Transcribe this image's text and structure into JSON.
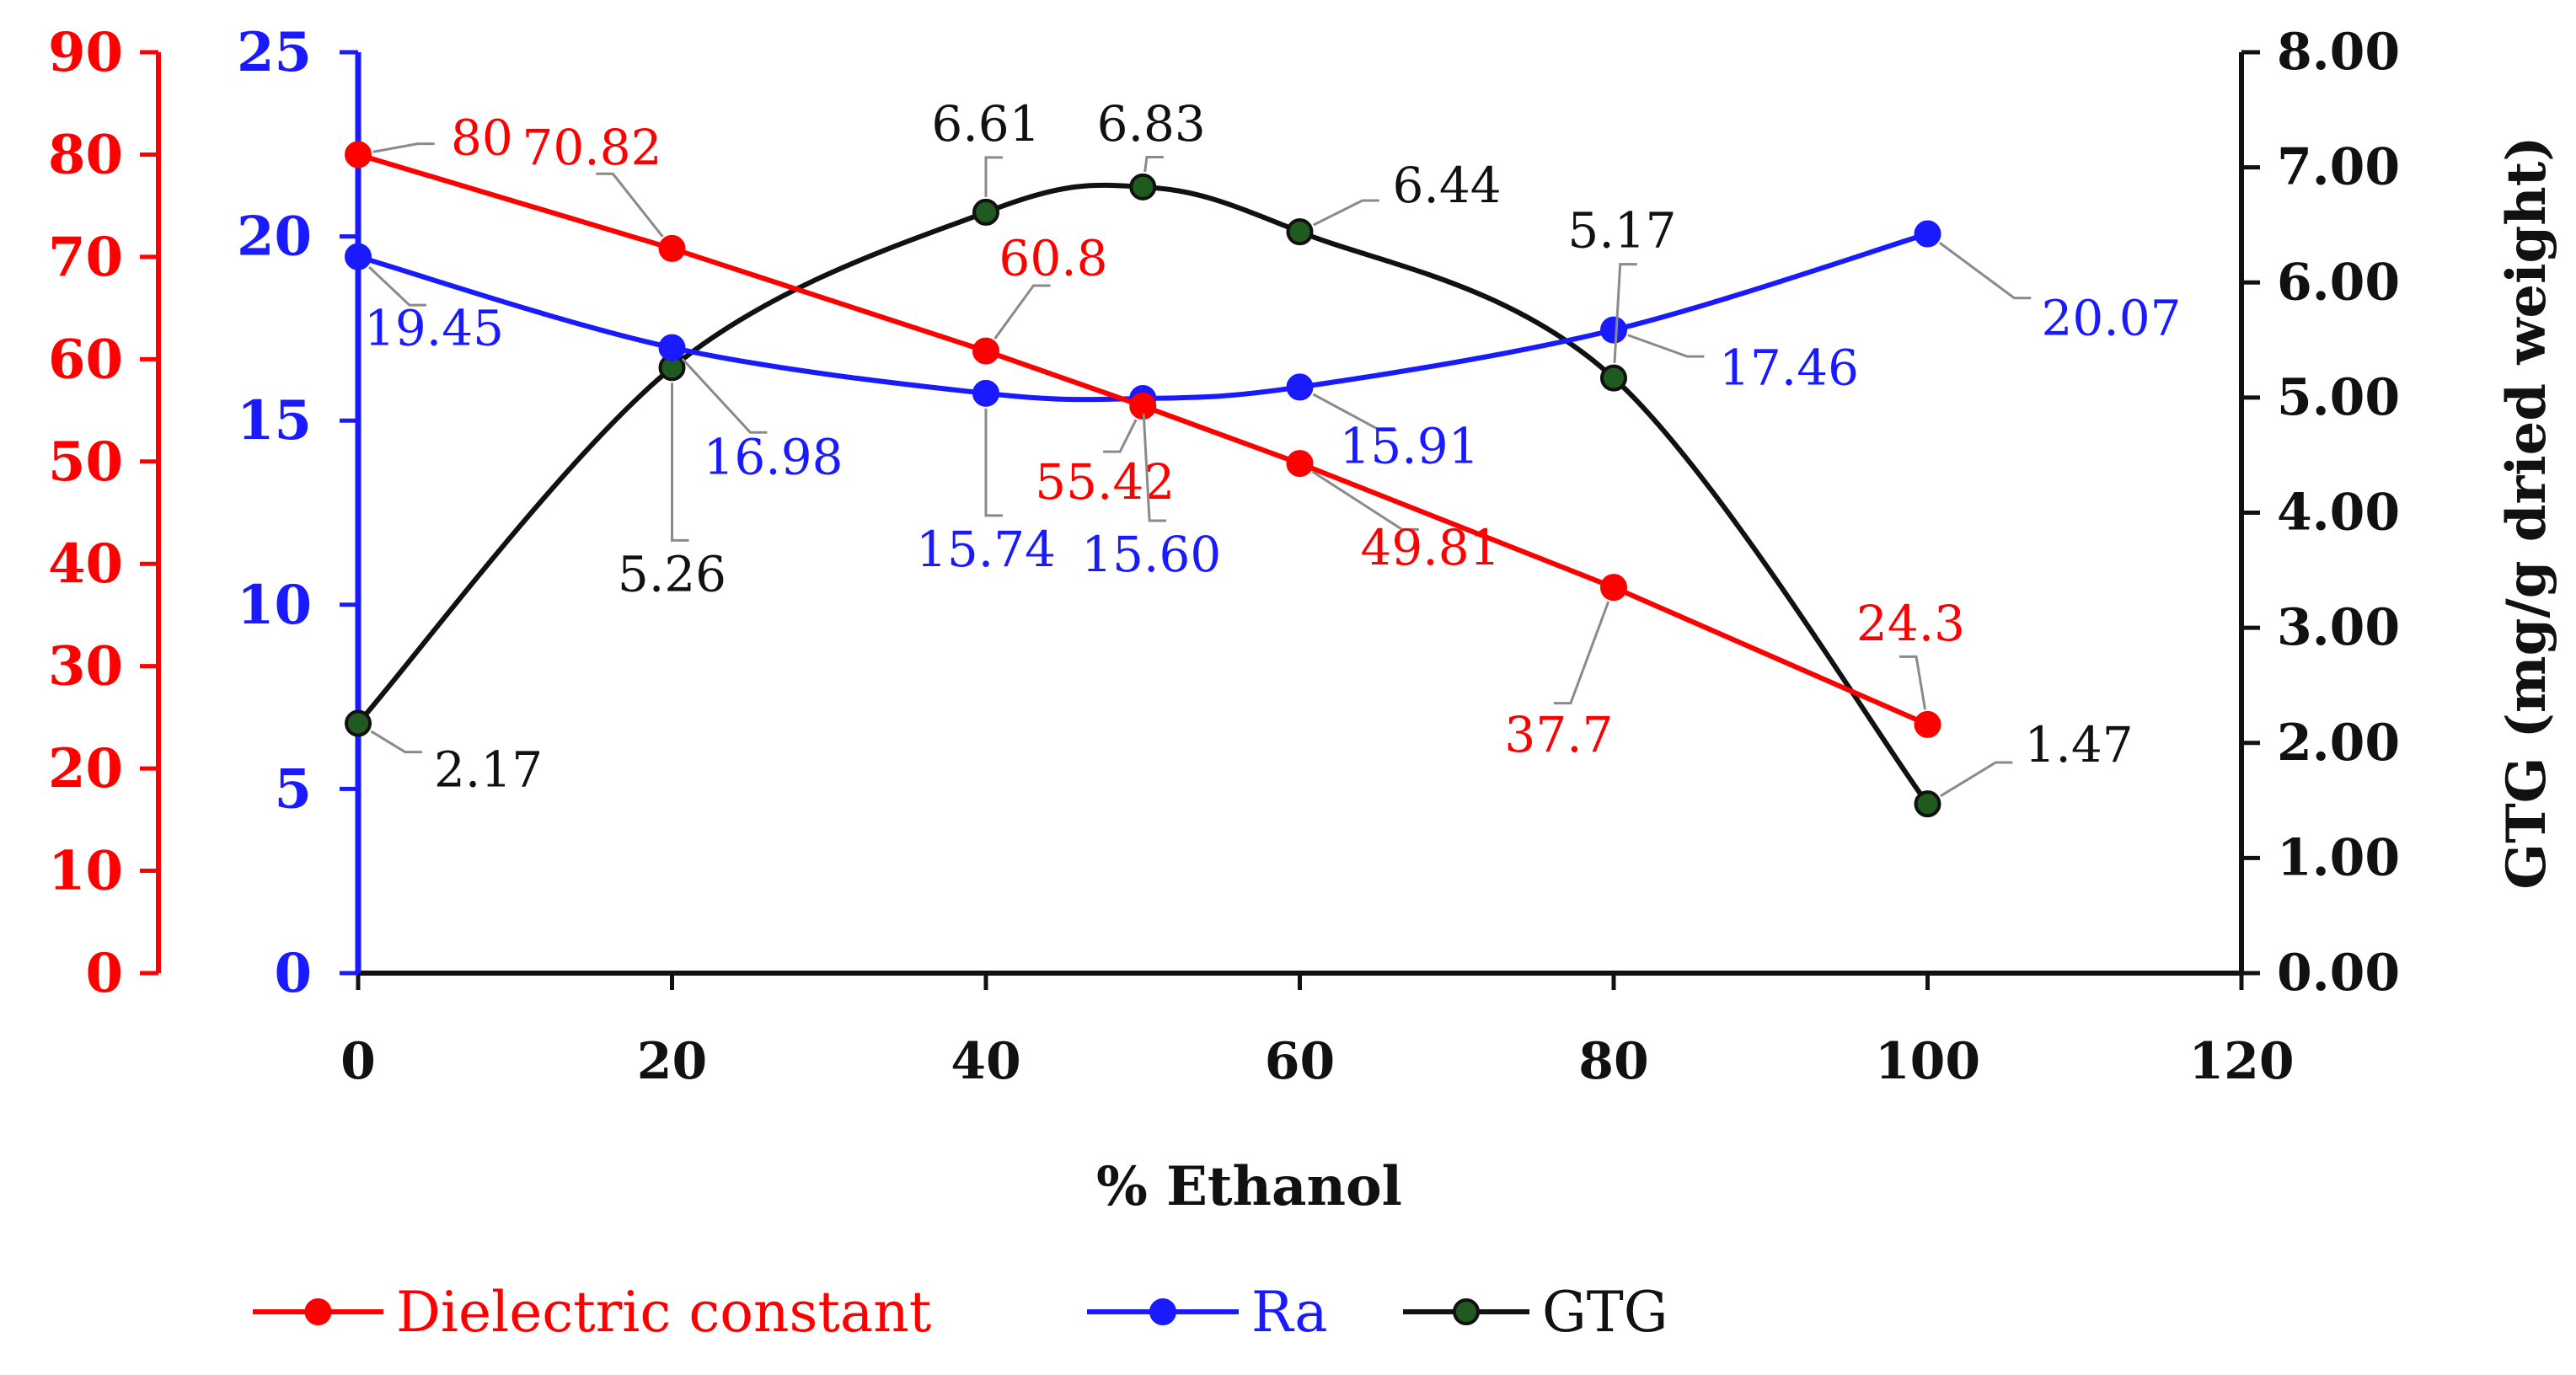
{
  "chart_data": {
    "type": "line",
    "xlabel": "% Ethanol",
    "xlim": [
      0,
      120
    ],
    "xticks": [
      "0",
      "20",
      "40",
      "60",
      "80",
      "100",
      "120"
    ],
    "axes": {
      "left_outer": {
        "series": "Dielectric constant",
        "color": "#ff0000",
        "ylim": [
          0,
          90
        ],
        "ticks": [
          "0",
          "10",
          "20",
          "30",
          "40",
          "50",
          "60",
          "70",
          "80",
          "90"
        ]
      },
      "left_inner": {
        "series": "Ra",
        "color": "#1a1aff",
        "ylim": [
          0,
          25
        ],
        "ticks": [
          "0",
          "5",
          "10",
          "15",
          "20",
          "25"
        ]
      },
      "right": {
        "series": "GTG",
        "color": "#111111",
        "ylim": [
          0,
          8
        ],
        "ylabel": "GTG (mg/g dried weight)",
        "ticks": [
          "0.00",
          "1.00",
          "2.00",
          "3.00",
          "4.00",
          "5.00",
          "6.00",
          "7.00",
          "8.00"
        ]
      }
    },
    "series": [
      {
        "name": "Dielectric constant",
        "axis": "left_outer",
        "color": "#ff0000",
        "smooth": false,
        "x": [
          0,
          20,
          40,
          50,
          60,
          80,
          100
        ],
        "values": [
          80,
          70.82,
          60.8,
          55.42,
          49.81,
          37.7,
          24.3
        ],
        "labels": [
          "80",
          "70.82",
          "60.8",
          "55.42",
          "49.81",
          "37.7",
          "24.3"
        ]
      },
      {
        "name": "Ra",
        "axis": "left_inner",
        "color": "#1a1aff",
        "smooth": true,
        "x": [
          0,
          20,
          40,
          50,
          60,
          80,
          100
        ],
        "values": [
          19.45,
          16.98,
          15.74,
          15.6,
          15.91,
          17.46,
          20.07
        ],
        "labels": [
          "19.45",
          "16.98",
          "15.74",
          "15.60",
          "15.91",
          "17.46",
          "20.07"
        ]
      },
      {
        "name": "GTG",
        "axis": "right",
        "color": "#111111",
        "marker_fill": "#1f5a1f",
        "smooth": true,
        "x": [
          0,
          20,
          40,
          50,
          60,
          80,
          100
        ],
        "values": [
          2.17,
          5.26,
          6.61,
          6.83,
          6.44,
          5.17,
          1.47
        ],
        "labels": [
          "2.17",
          "5.26",
          "6.61",
          "6.83",
          "6.44",
          "5.17",
          "1.47"
        ]
      }
    ],
    "legend": {
      "position": "bottom",
      "entries": [
        "Dielectric constant",
        "Ra",
        "GTG"
      ]
    }
  }
}
